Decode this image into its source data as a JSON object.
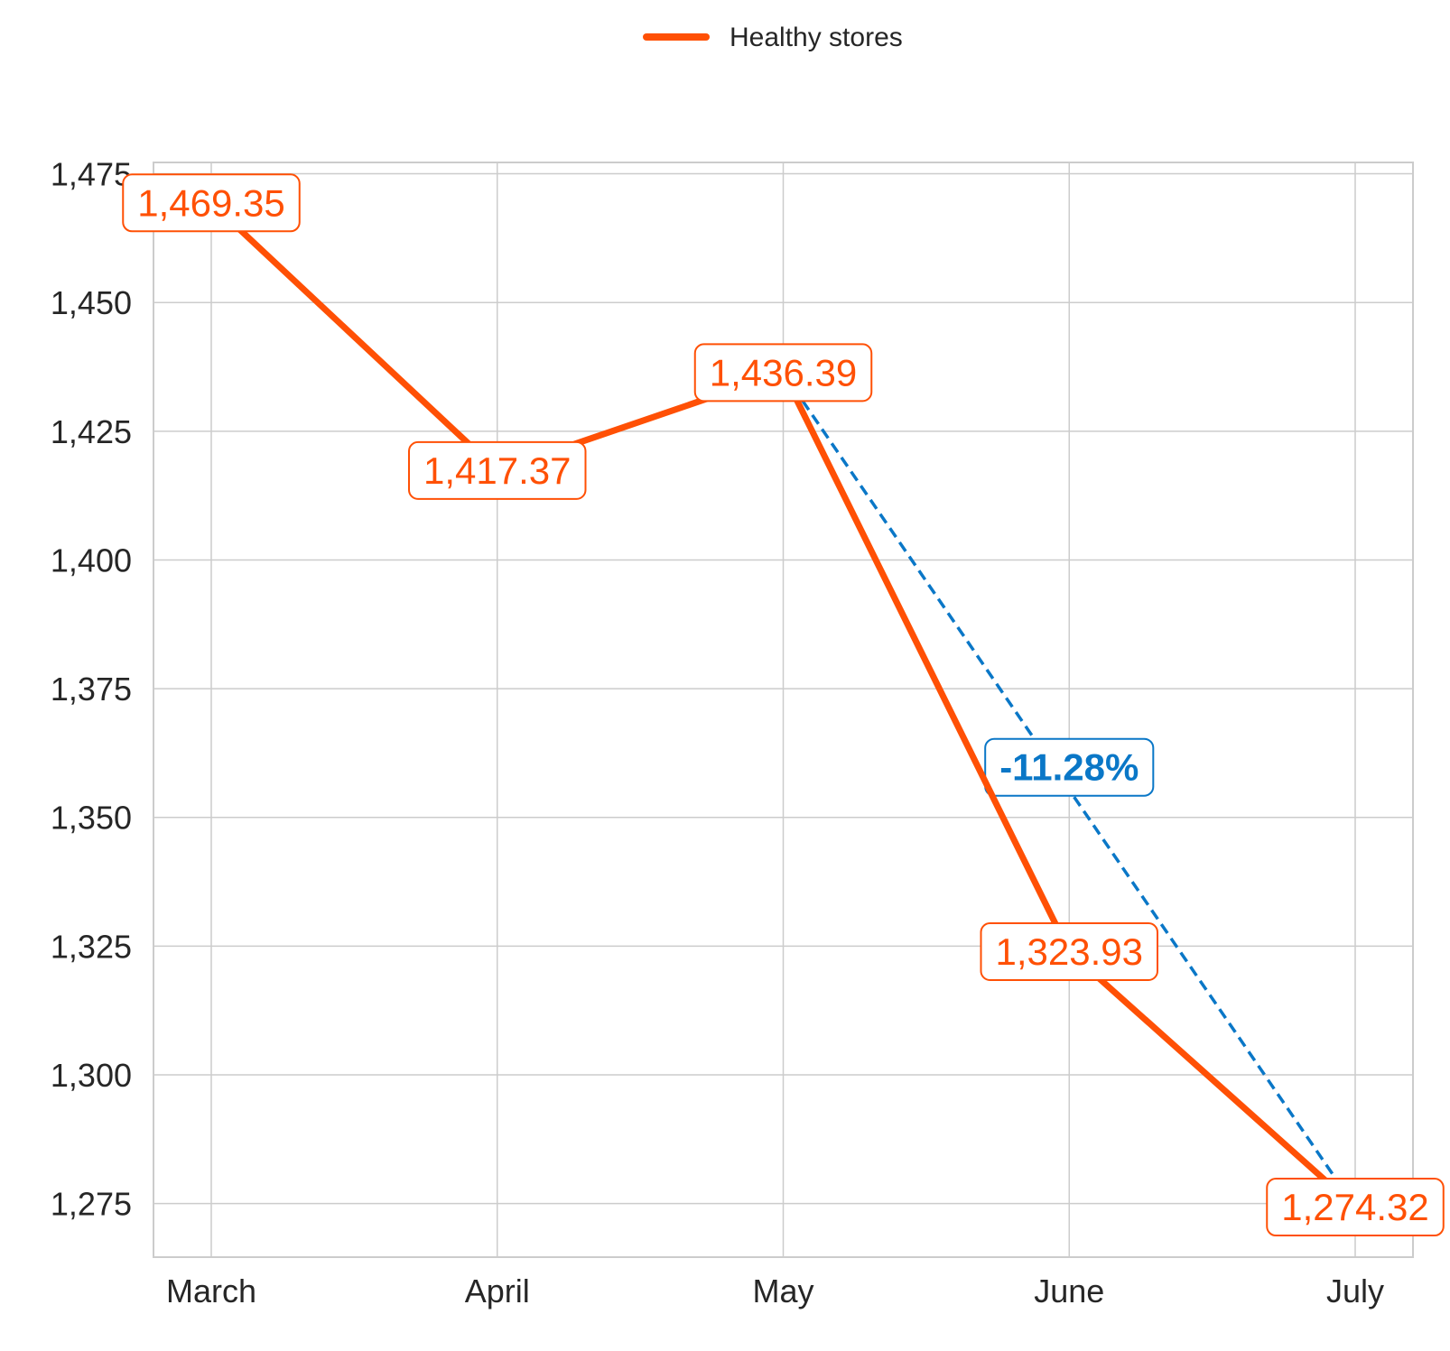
{
  "chart_data": {
    "type": "line",
    "categories": [
      "March",
      "April",
      "May",
      "June",
      "July"
    ],
    "series": [
      {
        "name": "Healthy stores",
        "values": [
          1469.35,
          1417.37,
          1436.39,
          1323.93,
          1274.32
        ],
        "labels": [
          "1,469.35",
          "1,417.37",
          "1,436.39",
          "1,323.93",
          "1,274.32"
        ],
        "color": "#ff5005"
      }
    ],
    "ylim": [
      1264.6,
      1477.2
    ],
    "yticks": [
      1275,
      1300,
      1325,
      1350,
      1375,
      1400,
      1425,
      1450,
      1475
    ],
    "ytick_labels": [
      "1,275",
      "1,300",
      "1,325",
      "1,350",
      "1,375",
      "1,400",
      "1,425",
      "1,450",
      "1,475"
    ],
    "grid": true,
    "legend": {
      "position": "top-center",
      "entries": [
        "Healthy stores"
      ]
    },
    "annotation": {
      "label": "-11.28%",
      "from_category": "May",
      "to_category": "July",
      "color": "#0a77c7"
    },
    "title": "",
    "xlabel": "",
    "ylabel": ""
  }
}
